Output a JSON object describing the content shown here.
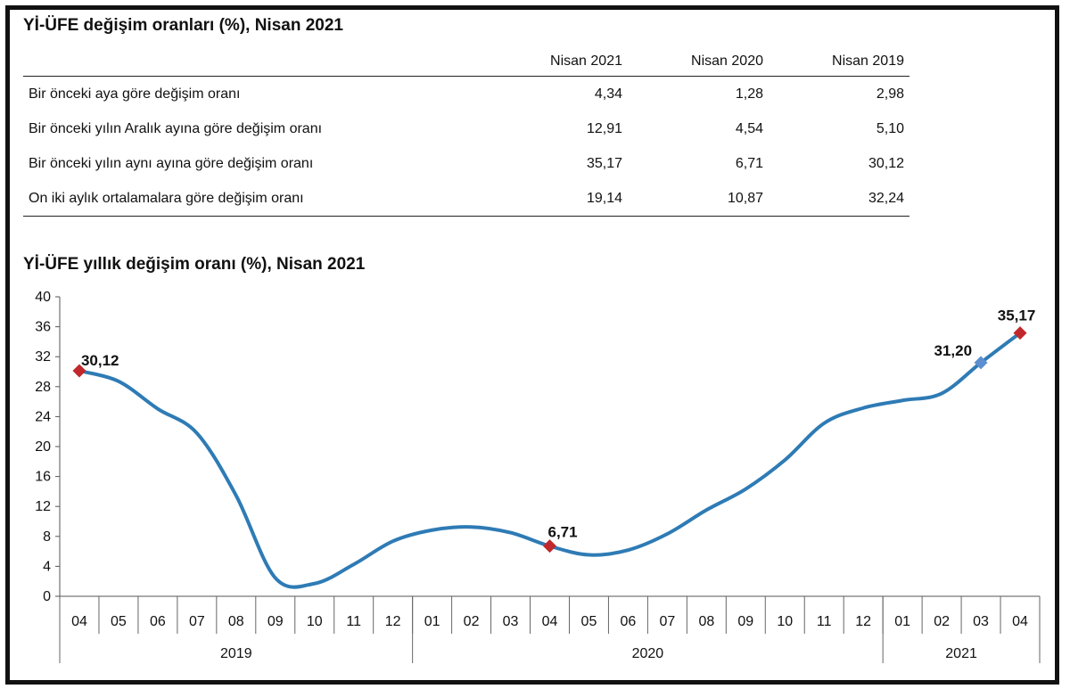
{
  "table": {
    "title": "Yİ-ÜFE değişim oranları (%), Nisan 2021",
    "columns": [
      "Nisan 2021",
      "Nisan 2020",
      "Nisan 2019"
    ],
    "rows": [
      {
        "label": "Bir önceki aya göre değişim oranı",
        "values": [
          "4,34",
          "1,28",
          "2,98"
        ]
      },
      {
        "label": "Bir önceki yılın Aralık ayına göre değişim oranı",
        "values": [
          "12,91",
          "4,54",
          "5,10"
        ]
      },
      {
        "label": "Bir önceki yılın aynı ayına göre değişim oranı",
        "values": [
          "35,17",
          "6,71",
          "30,12"
        ]
      },
      {
        "label": "On iki aylık ortalamalara göre değişim oranı",
        "values": [
          "19,14",
          "10,87",
          "32,24"
        ]
      }
    ]
  },
  "chart_data": {
    "type": "line",
    "title": "Yİ-ÜFE yıllık değişim oranı (%), Nisan 2021",
    "ylim": [
      0,
      40
    ],
    "yticks": [
      0,
      4,
      8,
      12,
      16,
      20,
      24,
      28,
      32,
      36,
      40
    ],
    "categories": [
      "04",
      "05",
      "06",
      "07",
      "08",
      "09",
      "10",
      "11",
      "12",
      "01",
      "02",
      "03",
      "04",
      "05",
      "06",
      "07",
      "08",
      "09",
      "10",
      "11",
      "12",
      "01",
      "02",
      "03",
      "04"
    ],
    "years": [
      {
        "label": "2019",
        "count": 9
      },
      {
        "label": "2020",
        "count": 12
      },
      {
        "label": "2021",
        "count": 4
      }
    ],
    "series": [
      {
        "values": [
          30.12,
          28.71,
          25.04,
          21.78,
          13.45,
          2.45,
          1.7,
          4.26,
          7.36,
          8.84,
          9.26,
          8.5,
          6.71,
          5.53,
          6.17,
          8.33,
          11.53,
          14.33,
          18.2,
          23.11,
          25.15,
          26.16,
          27.09,
          31.2,
          35.17
        ],
        "color": "#2e7bb5"
      }
    ],
    "markers": [
      {
        "index": 0,
        "label": "30,12",
        "color": "#c0282d"
      },
      {
        "index": 12,
        "label": "6,71",
        "color": "#c0282d"
      },
      {
        "index": 23,
        "label": "31,20",
        "color": "#5b8fd0"
      },
      {
        "index": 24,
        "label": "35,17",
        "color": "#c0282d"
      }
    ]
  }
}
